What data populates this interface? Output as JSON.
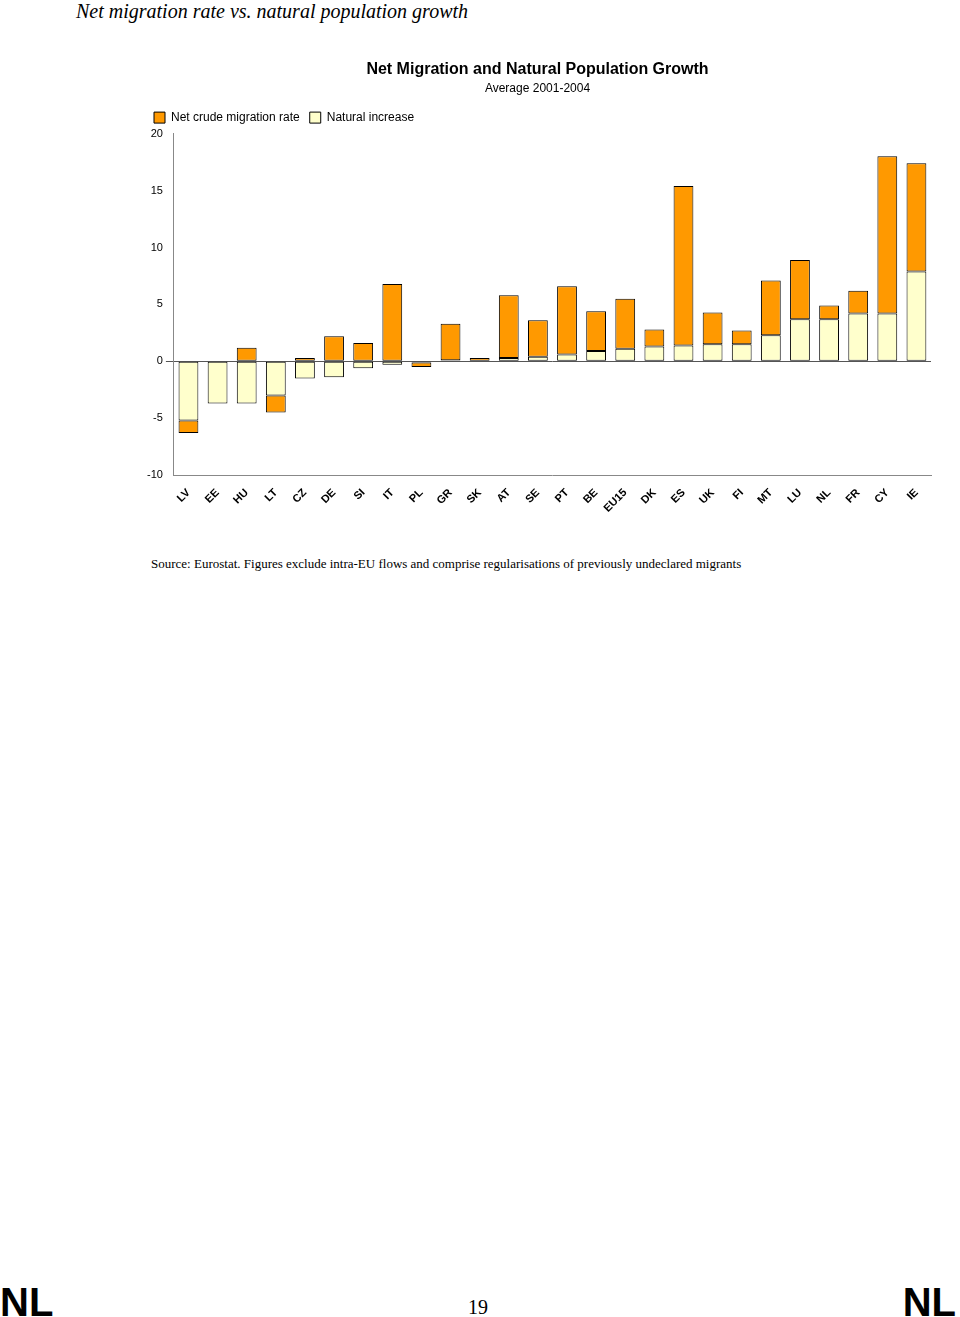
{
  "header": "Net migration rate vs. natural population growth",
  "chart_data": {
    "type": "bar",
    "title": "Net Migration and Natural Population Growth",
    "subtitle": "Average 2001-2004",
    "categories": [
      "LV",
      "EE",
      "HU",
      "LT",
      "CZ",
      "DE",
      "SI",
      "IT",
      "PL",
      "GR",
      "SK",
      "AT",
      "SE",
      "PT",
      "BE",
      "EU15",
      "DK",
      "ES",
      "UK",
      "FI",
      "MT",
      "LU",
      "NL",
      "FR",
      "CY",
      "IE"
    ],
    "series": [
      {
        "name": "Natural increase",
        "color": "#ffffcc",
        "values": [
          -5.2,
          -3.7,
          -3.7,
          -3.0,
          -1.5,
          -1.4,
          -0.6,
          -0.3,
          -0.1,
          0.1,
          0.0,
          0.3,
          0.4,
          0.6,
          0.9,
          1.1,
          1.3,
          1.4,
          1.5,
          1.5,
          2.3,
          3.7,
          3.7,
          4.2,
          4.2,
          7.9
        ]
      },
      {
        "name": "Net crude migration rate",
        "color": "#ff9900",
        "values": [
          -1.1,
          0.0,
          1.2,
          -1.5,
          0.3,
          2.2,
          1.6,
          6.8,
          -0.4,
          3.2,
          0.3,
          5.5,
          3.2,
          6.0,
          3.5,
          4.4,
          1.5,
          14.0,
          2.8,
          1.2,
          4.8,
          5.2,
          1.2,
          2.0,
          13.8,
          9.5
        ]
      }
    ],
    "stacked": true,
    "legend": "top-left",
    "grid": false,
    "ylim": [
      -10,
      20
    ],
    "yticks": [
      -10,
      -5,
      0,
      5,
      10,
      15,
      20
    ]
  },
  "source": "Source: Eurostat. Figures exclude intra-EU flows and comprise regularisations of previously undeclared migrants",
  "footer": {
    "left": "NL",
    "page": "19",
    "right": "NL"
  }
}
